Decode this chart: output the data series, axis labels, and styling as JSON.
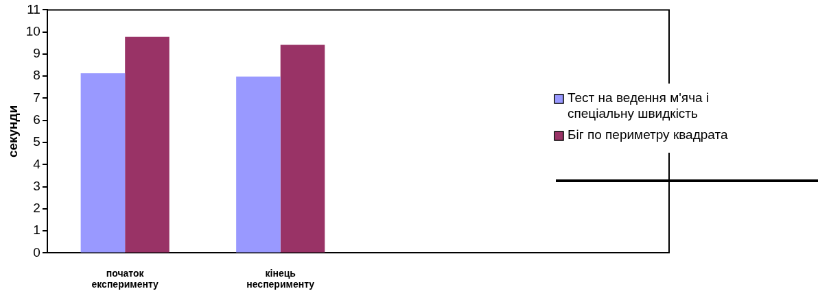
{
  "chart_data": {
    "type": "bar",
    "ylabel": "секунди",
    "categories": [
      "початок експерименту",
      "кінець несперименту",
      null,
      null
    ],
    "series": [
      {
        "name": "Тест на ведення м'яча і спеціальну швидкість",
        "color": "#9999ff",
        "values": [
          8.13,
          7.98,
          null,
          null
        ]
      },
      {
        "name": "Біг по периметру квадрата",
        "color": "#993366",
        "values": [
          9.78,
          9.42,
          null,
          null
        ]
      }
    ],
    "ylim": [
      0,
      11
    ],
    "yticks": [
      0,
      1,
      2,
      3,
      4,
      5,
      6,
      7,
      8,
      9,
      10,
      11
    ],
    "grid": false,
    "legend": "right"
  }
}
